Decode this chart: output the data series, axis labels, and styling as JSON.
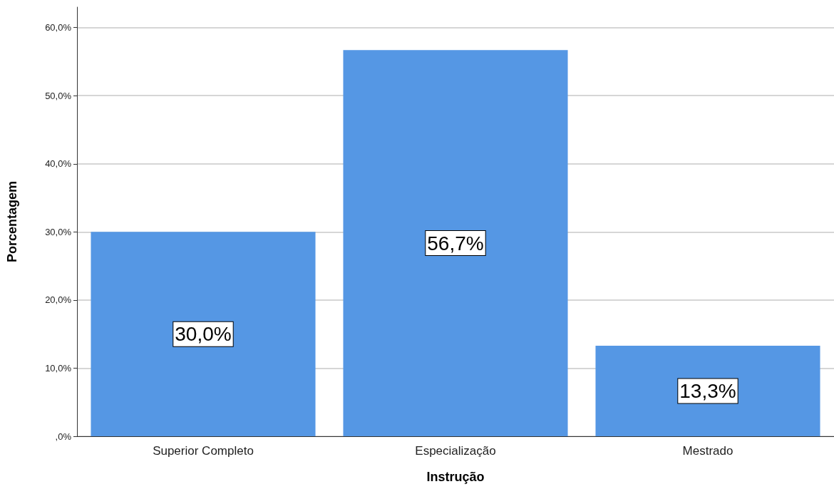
{
  "chart_data": {
    "type": "bar",
    "xlabel": "Instrução",
    "ylabel": "Porcentagem",
    "categories": [
      "Superior Completo",
      "Especialização",
      "Mestrado"
    ],
    "values": [
      30.0,
      56.7,
      13.3
    ],
    "value_labels": [
      "30,0%",
      "56,7%",
      "13,3%"
    ],
    "color": "#5597e4",
    "ylim": [
      0,
      63
    ],
    "yticks": [
      {
        "value": 0,
        "label": ",0%"
      },
      {
        "value": 10,
        "label": "10,0%"
      },
      {
        "value": 20,
        "label": "20,0%"
      },
      {
        "value": 30,
        "label": "30,0%"
      },
      {
        "value": 40,
        "label": "40,0%"
      },
      {
        "value": 50,
        "label": "50,0%"
      },
      {
        "value": 60,
        "label": "60,0%"
      }
    ],
    "grid": "y"
  }
}
